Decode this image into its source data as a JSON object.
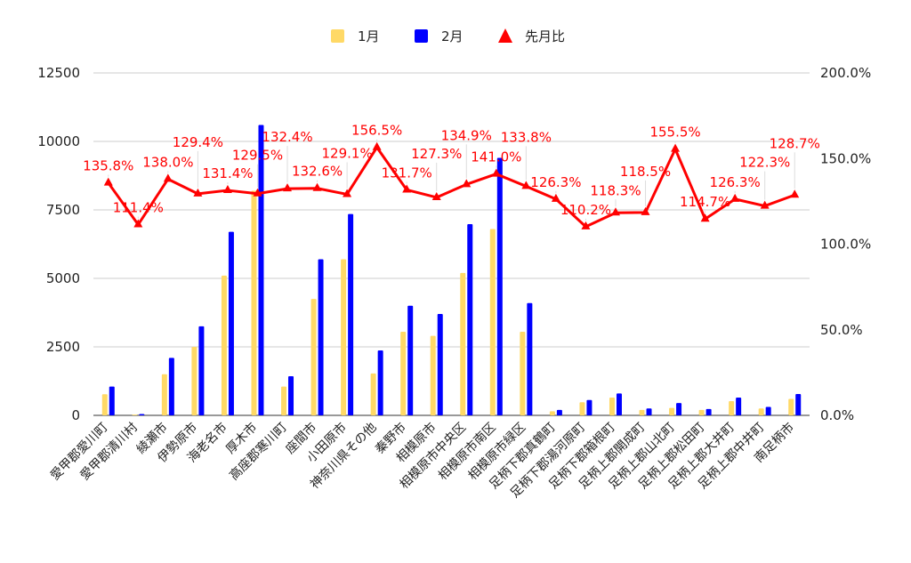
{
  "chart_data": {
    "type": "bar",
    "title": "",
    "categories": [
      "愛甲郡愛川町",
      "愛甲郡清川村",
      "綾瀬市",
      "伊勢原市",
      "海老名市",
      "厚木市",
      "高座郡寒川町",
      "座間市",
      "小田原市",
      "神奈川県その他",
      "秦野市",
      "相模原市",
      "相模原市中央区",
      "相模原市南区",
      "相模原市緑区",
      "足柄下郡真鶴町",
      "足柄下郡湯河原町",
      "足柄下郡箱根町",
      "足柄上郡開成町",
      "足柄上郡山北町",
      "足柄上郡松田町",
      "足柄上郡大井町",
      "足柄上郡中井町",
      "南足柄市"
    ],
    "series": [
      {
        "name": "1月",
        "type": "bar",
        "axis": "left",
        "color": "#ffd966",
        "values": [
          770,
          30,
          1500,
          2500,
          5100,
          8200,
          1050,
          4250,
          5700,
          1530,
          3050,
          2900,
          5200,
          6800,
          3050,
          150,
          480,
          650,
          200,
          270,
          200,
          520,
          250,
          600
        ]
      },
      {
        "name": "2月",
        "type": "bar",
        "axis": "left",
        "color": "#0000ff",
        "values": [
          1050,
          50,
          2100,
          3250,
          6700,
          10600,
          1430,
          5700,
          7350,
          2370,
          4000,
          3700,
          6980,
          9400,
          4100,
          200,
          560,
          800,
          250,
          450,
          230,
          650,
          310,
          780
        ]
      },
      {
        "name": "先月比",
        "type": "line",
        "axis": "right",
        "color": "#ff0000",
        "values": [
          135.8,
          111.4,
          138.0,
          129.4,
          131.4,
          129.5,
          132.4,
          132.6,
          129.1,
          156.5,
          131.7,
          127.3,
          134.9,
          141.0,
          133.8,
          126.3,
          110.2,
          118.3,
          118.5,
          155.5,
          114.7,
          126.3,
          122.3,
          128.7
        ],
        "labels": [
          "135.8%",
          "111.4%",
          "138.0%",
          "129.4%",
          "131.4%",
          "129.5%",
          "132.4%",
          "132.6%",
          "129.1%",
          "156.5%",
          "131.7%",
          "127.3%",
          "134.9%",
          "141.0%",
          "133.8%",
          "126.3%",
          "110.2%",
          "118.3%",
          "118.5%",
          "155.5%",
          "114.7%",
          "126.3%",
          "122.3%",
          "128.7%"
        ]
      }
    ],
    "y_left": {
      "ylim": [
        0,
        12500
      ],
      "ticks": [
        "0",
        "2500",
        "5000",
        "7500",
        "10000",
        "12500"
      ]
    },
    "y_right": {
      "ylim": [
        0,
        200
      ],
      "ticks": [
        "0.0%",
        "50.0%",
        "100.0%",
        "150.0%",
        "200.0%"
      ]
    },
    "legend": {
      "placement": "top-center",
      "items": [
        "1月",
        "2月",
        "先月比"
      ]
    },
    "grid": true
  }
}
